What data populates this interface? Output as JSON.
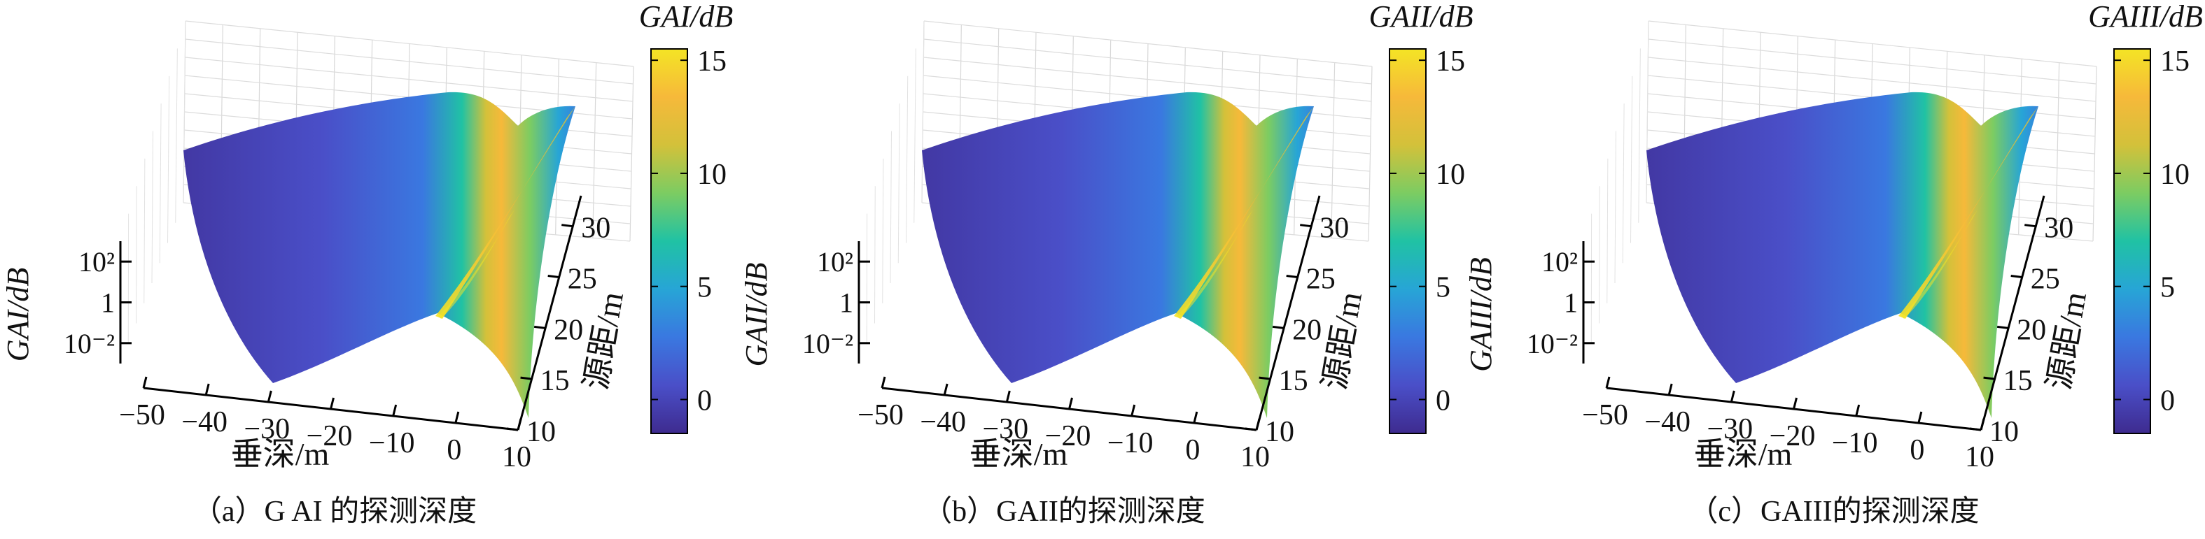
{
  "figure": {
    "colorscale": [
      "#3e2b8f",
      "#4a4fc8",
      "#3a78e0",
      "#27a5d6",
      "#20c2a4",
      "#7ccc62",
      "#d3c13a",
      "#f6b93a",
      "#f4e425"
    ]
  },
  "chart_data": [
    {
      "type": "surface3d",
      "caption": "（a）G AI 的探测深度",
      "xlabel": "垂深/m",
      "ylabel": "源距/m",
      "zlabel": "GAI/dB",
      "x_ticks": [
        "−50",
        "−40",
        "−30",
        "−20",
        "−10",
        "0",
        "10"
      ],
      "y_ticks": [
        "10",
        "15",
        "20",
        "25",
        "30"
      ],
      "z_ticks": [
        "10⁻²",
        "1",
        "10²"
      ],
      "xlim": [
        -50,
        10
      ],
      "ylim": [
        10,
        33
      ],
      "z_scale": "log",
      "colorbar": {
        "title": "GAI/dB",
        "ticks": [
          "0",
          "5",
          "10",
          "15"
        ],
        "range": [
          -1.5,
          15.5
        ]
      },
      "ridge": {
        "peak_x": 0,
        "peak_gain_db": 15
      }
    },
    {
      "type": "surface3d",
      "caption": "（b）GAII的探测深度",
      "xlabel": "垂深/m",
      "ylabel": "源距/m",
      "zlabel": "GAII/dB",
      "x_ticks": [
        "−50",
        "−40",
        "−30",
        "−20",
        "−10",
        "0",
        "10"
      ],
      "y_ticks": [
        "10",
        "15",
        "20",
        "25",
        "30"
      ],
      "z_ticks": [
        "10⁻²",
        "1",
        "10²"
      ],
      "xlim": [
        -50,
        10
      ],
      "ylim": [
        10,
        33
      ],
      "z_scale": "log",
      "colorbar": {
        "title": "GAII/dB",
        "ticks": [
          "0",
          "5",
          "10",
          "15"
        ],
        "range": [
          -1.5,
          15.5
        ]
      },
      "ridge": {
        "peak_x": 0,
        "peak_gain_db": 15
      }
    },
    {
      "type": "surface3d",
      "caption": "（c）GAIII的探测深度",
      "xlabel": "垂深/m",
      "ylabel": "源距/m",
      "zlabel": "GAIII/dB",
      "x_ticks": [
        "−50",
        "−40",
        "−30",
        "−20",
        "−10",
        "0",
        "10"
      ],
      "y_ticks": [
        "10",
        "15",
        "20",
        "25",
        "30"
      ],
      "z_ticks": [
        "10⁻²",
        "1",
        "10²"
      ],
      "xlim": [
        -50,
        10
      ],
      "ylim": [
        10,
        33
      ],
      "z_scale": "log",
      "colorbar": {
        "title": "GAIII/dB",
        "ticks": [
          "0",
          "5",
          "10",
          "15"
        ],
        "range": [
          -1.5,
          15.5
        ]
      },
      "ridge": {
        "peak_x": 0,
        "peak_gain_db": 15
      }
    }
  ]
}
